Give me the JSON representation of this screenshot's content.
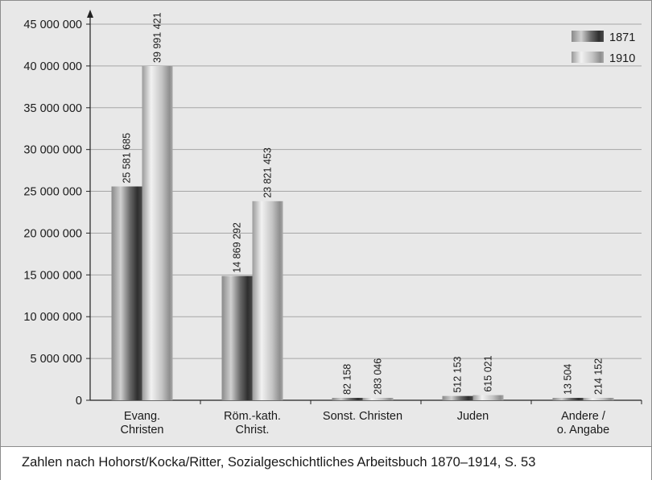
{
  "chart_data": {
    "type": "bar",
    "categories": [
      [
        "Evang.",
        "Christen"
      ],
      [
        "Röm.-kath.",
        "Christ."
      ],
      [
        "Sonst. Christen"
      ],
      [
        "Juden"
      ],
      [
        "Andere /",
        "o. Angabe"
      ]
    ],
    "series": [
      {
        "name": "1871",
        "values": [
          25581685,
          14869292,
          82158,
          512153,
          13504
        ],
        "labels": [
          "25 581 685",
          "14 869 292",
          "82 158",
          "512 153",
          "13 504"
        ],
        "color": "#4d4d4d"
      },
      {
        "name": "1910",
        "values": [
          39991421,
          23821453,
          283046,
          615021,
          214152
        ],
        "labels": [
          "39 991 421",
          "23 821 453",
          "283 046",
          "615 021",
          "214 152"
        ],
        "color": "#b3b3b3"
      }
    ],
    "ylim": [
      0,
      45000000
    ],
    "yticks": [
      0,
      5000000,
      10000000,
      15000000,
      20000000,
      25000000,
      30000000,
      35000000,
      40000000,
      45000000
    ],
    "ytick_labels": [
      "0",
      "5 000 000",
      "10 000 000",
      "15 000 000",
      "20 000 000",
      "25 000 000",
      "30 000 000",
      "35 000 000",
      "40 000 000",
      "45 000 000"
    ],
    "grid": true,
    "legend": "top-right",
    "title": "",
    "xlabel": "",
    "ylabel": ""
  },
  "caption": "Zahlen nach Hohorst/Kocka/Ritter, Sozialgeschichtliches Arbeitsbuch 1870–1914, S. 53"
}
